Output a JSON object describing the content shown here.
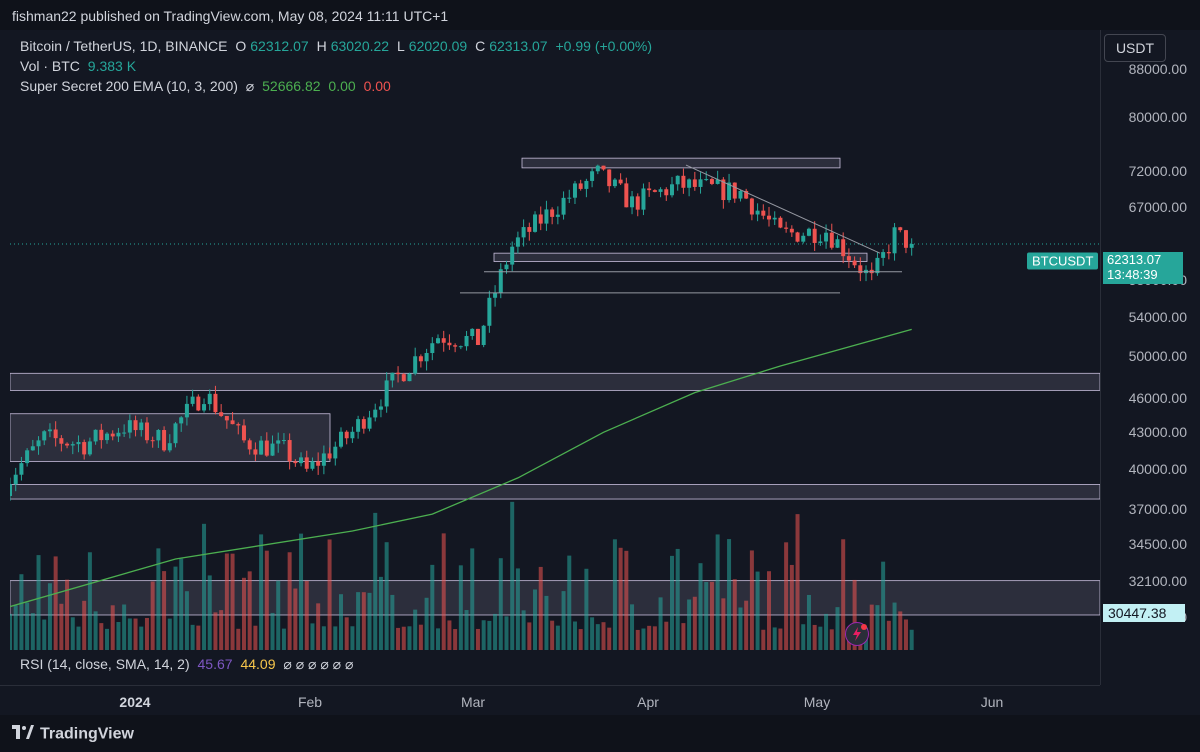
{
  "header": {
    "published_text": "fishman22 published on TradingView.com, May 08, 2024 11:11 UTC+1"
  },
  "legend": {
    "symbol": "Bitcoin / TetherUS, 1D, BINANCE",
    "open_label": "O",
    "open": "62312.07",
    "high_label": "H",
    "high": "63020.22",
    "low_label": "L",
    "low": "62020.09",
    "close_label": "C",
    "close": "62313.07",
    "change": "+0.99 (+0.00%)",
    "vol_label": "Vol · BTC",
    "vol_value": "9.383 K",
    "ema_label": "Super Secret 200 EMA (10, 3, 200)",
    "ema_icon": "⌀",
    "ema_values": [
      "52666.82",
      "0.00",
      "0.00"
    ],
    "rsi_label": "RSI (14, close, SMA, 14, 2)",
    "rsi_value": "45.67",
    "rsi_sma": "44.09",
    "rsi_extra": "⌀ ⌀ ⌀ ⌀ ⌀ ⌀"
  },
  "price_axis": {
    "currency": "USDT",
    "ticks": [
      "88000.00",
      "80000.00",
      "72000.00",
      "67000.00",
      "58000.00",
      "54000.00",
      "50000.00",
      "46000.00",
      "43000.00",
      "40000.00",
      "37000.00",
      "34500.00",
      "32100.00",
      "29900.00"
    ],
    "symbol_tag": "BTCUSDT",
    "last_price": "62313.07",
    "countdown": "13:48:39",
    "volume_tag": "30447.38"
  },
  "time_axis": {
    "ticks": [
      "2024",
      "Feb",
      "Mar",
      "Apr",
      "May",
      "Jun"
    ]
  },
  "branding": {
    "name": "TradingView"
  },
  "colors": {
    "up": "#26a69a",
    "down": "#ef5350",
    "ema": "#4caf50",
    "bg": "#131722"
  },
  "chart_data": {
    "type": "candlestick",
    "title": "Bitcoin / TetherUS, 1D, BINANCE",
    "y_scale": "log",
    "ylim": [
      28000,
      95000
    ],
    "x_range": [
      "2023-12-02",
      "2024-06-10"
    ],
    "candles": [
      {
        "date": "2023-12-01",
        "o": 38700,
        "h": 39000,
        "l": 38000,
        "c": 38800
      },
      {
        "date": "2023-12-08",
        "o": 43000,
        "h": 44500,
        "l": 40500,
        "c": 42500
      },
      {
        "date": "2023-12-15",
        "o": 42500,
        "h": 43500,
        "l": 41000,
        "c": 42000
      },
      {
        "date": "2023-12-22",
        "o": 42000,
        "h": 44000,
        "l": 41500,
        "c": 43500
      },
      {
        "date": "2023-12-29",
        "o": 43500,
        "h": 45500,
        "l": 42000,
        "c": 42300
      },
      {
        "date": "2024-01-05",
        "o": 42300,
        "h": 47500,
        "l": 42000,
        "c": 46500
      },
      {
        "date": "2024-01-12",
        "o": 46500,
        "h": 49000,
        "l": 41500,
        "c": 42200
      },
      {
        "date": "2024-01-19",
        "o": 42200,
        "h": 43500,
        "l": 40500,
        "c": 41500
      },
      {
        "date": "2024-01-23",
        "o": 41500,
        "h": 41800,
        "l": 38600,
        "c": 39800
      },
      {
        "date": "2024-01-31",
        "o": 39800,
        "h": 43500,
        "l": 39500,
        "c": 43000
      },
      {
        "date": "2024-02-08",
        "o": 43000,
        "h": 48500,
        "l": 42700,
        "c": 48000
      },
      {
        "date": "2024-02-15",
        "o": 48000,
        "h": 53000,
        "l": 47500,
        "c": 52000
      },
      {
        "date": "2024-02-22",
        "o": 52000,
        "h": 52500,
        "l": 50600,
        "c": 51500
      },
      {
        "date": "2024-02-28",
        "o": 51500,
        "h": 64000,
        "l": 51000,
        "c": 62000
      },
      {
        "date": "2024-03-05",
        "o": 62000,
        "h": 69000,
        "l": 59000,
        "c": 66000
      },
      {
        "date": "2024-03-14",
        "o": 66000,
        "h": 73800,
        "l": 65000,
        "c": 71500
      },
      {
        "date": "2024-03-20",
        "o": 71500,
        "h": 72000,
        "l": 61000,
        "c": 67500
      },
      {
        "date": "2024-03-28",
        "o": 67500,
        "h": 71500,
        "l": 66500,
        "c": 70000
      },
      {
        "date": "2024-04-08",
        "o": 70000,
        "h": 72800,
        "l": 67000,
        "c": 69000
      },
      {
        "date": "2024-04-15",
        "o": 69000,
        "h": 70000,
        "l": 60000,
        "c": 63500
      },
      {
        "date": "2024-04-23",
        "o": 63500,
        "h": 67000,
        "l": 62500,
        "c": 64000
      },
      {
        "date": "2024-05-01",
        "o": 64000,
        "h": 64500,
        "l": 56500,
        "c": 58000
      },
      {
        "date": "2024-05-05",
        "o": 58000,
        "h": 65000,
        "l": 57500,
        "c": 63500
      },
      {
        "date": "2024-05-08",
        "o": 62312.07,
        "h": 63020.22,
        "l": 62020.09,
        "c": 62313.07
      }
    ],
    "ema200": {
      "name": "Super Secret 200 EMA (10, 3, 200)",
      "points": [
        [
          "2023-12-02",
          30500
        ],
        [
          "2023-12-31",
          33500
        ],
        [
          "2024-01-31",
          35400
        ],
        [
          "2024-02-14",
          36600
        ],
        [
          "2024-02-29",
          39300
        ],
        [
          "2024-03-15",
          43000
        ],
        [
          "2024-03-31",
          46500
        ],
        [
          "2024-04-15",
          49000
        ],
        [
          "2024-05-08",
          52666.82
        ]
      ]
    },
    "volume": {
      "last": "30447.38"
    },
    "rsi": {
      "value": 45.67,
      "sma": 44.09
    }
  }
}
